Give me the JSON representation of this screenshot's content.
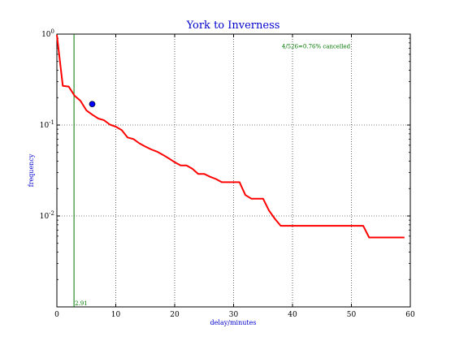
{
  "colors": {
    "title": "#0000cc",
    "axis_label": "#0000cc",
    "series": "#ff0000",
    "marker": "#0000ff",
    "vline": "#007700",
    "annotation": "#007700"
  },
  "chart_data": {
    "type": "line",
    "title": "York to Inverness",
    "xlabel": "delay/minutes",
    "ylabel": "frequency",
    "xlim": [
      0,
      60
    ],
    "ylim": [
      0.001,
      1
    ],
    "yscale": "log",
    "grid": true,
    "x_ticks": [
      {
        "value": 0,
        "label": "0"
      },
      {
        "value": 10,
        "label": "10"
      },
      {
        "value": 20,
        "label": "20"
      },
      {
        "value": 30,
        "label": "30"
      },
      {
        "value": 40,
        "label": "40"
      },
      {
        "value": 50,
        "label": "50"
      },
      {
        "value": 60,
        "label": "60"
      }
    ],
    "y_ticks": [
      {
        "value": 1,
        "base": "10",
        "exp": "0"
      },
      {
        "value": 0.1,
        "base": "10",
        "exp": "-1"
      },
      {
        "value": 0.01,
        "base": "10",
        "exp": "-2"
      }
    ],
    "series": [
      {
        "name": "",
        "points": [
          [
            0,
            0.98
          ],
          [
            1,
            0.27
          ],
          [
            2,
            0.265
          ],
          [
            3,
            0.21
          ],
          [
            4,
            0.185
          ],
          [
            5,
            0.145
          ],
          [
            6,
            0.13
          ],
          [
            7,
            0.118
          ],
          [
            8,
            0.113
          ],
          [
            9,
            0.101
          ],
          [
            10,
            0.096
          ],
          [
            11,
            0.088
          ],
          [
            12,
            0.073
          ],
          [
            13,
            0.07
          ],
          [
            14,
            0.063
          ],
          [
            15,
            0.058
          ],
          [
            16,
            0.054
          ],
          [
            17,
            0.051
          ],
          [
            18,
            0.047
          ],
          [
            19,
            0.043
          ],
          [
            20,
            0.039
          ],
          [
            21,
            0.036
          ],
          [
            22,
            0.036
          ],
          [
            23,
            0.033
          ],
          [
            24,
            0.029
          ],
          [
            25,
            0.029
          ],
          [
            26,
            0.027
          ],
          [
            27,
            0.0255
          ],
          [
            28,
            0.0235
          ],
          [
            29,
            0.0235
          ],
          [
            30,
            0.0235
          ],
          [
            31,
            0.0235
          ],
          [
            32,
            0.017
          ],
          [
            33,
            0.0155
          ],
          [
            34,
            0.0155
          ],
          [
            35,
            0.0155
          ],
          [
            36,
            0.0115
          ],
          [
            37,
            0.0093
          ],
          [
            38,
            0.0078
          ],
          [
            40,
            0.0078
          ],
          [
            45,
            0.0078
          ],
          [
            50,
            0.0078
          ],
          [
            52,
            0.0078
          ],
          [
            53,
            0.0058
          ],
          [
            55,
            0.0058
          ],
          [
            59,
            0.0058
          ]
        ]
      }
    ],
    "marker_point": {
      "x": 6,
      "y": 0.17
    },
    "vertical_line": {
      "x": 2.91,
      "label": "2.91"
    },
    "annotation": {
      "text": "4/526=0.76% cancelled",
      "x": 44,
      "y": 0.7
    }
  }
}
